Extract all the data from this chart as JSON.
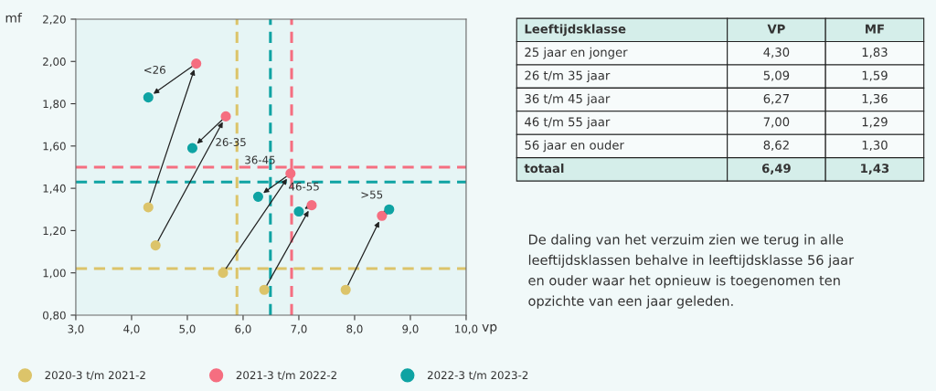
{
  "chart_data": [
    {
      "type": "scatter",
      "xlabel": "vp",
      "ylabel": "mf",
      "marker": "circle",
      "legend": "bottom",
      "xlim": [
        3.0,
        10.0
      ],
      "ylim": [
        0.8,
        2.2
      ],
      "xticks": [
        {
          "value": 3.0,
          "label": "3,0"
        },
        {
          "value": 4.0,
          "label": "4,0"
        },
        {
          "value": 5.0,
          "label": "5,0"
        },
        {
          "value": 6.0,
          "label": "6,0"
        },
        {
          "value": 7.0,
          "label": "7,0"
        },
        {
          "value": 8.0,
          "label": "8,0"
        },
        {
          "value": 9.0,
          "label": "9,0"
        },
        {
          "value": 10.0,
          "label": "10,0"
        }
      ],
      "yticks": [
        {
          "value": 0.8,
          "label": "0,80"
        },
        {
          "value": 1.0,
          "label": "1,00"
        },
        {
          "value": 1.2,
          "label": "1,20"
        },
        {
          "value": 1.4,
          "label": "1,40"
        },
        {
          "value": 1.6,
          "label": "1,60"
        },
        {
          "value": 1.8,
          "label": "1,80"
        },
        {
          "value": 2.0,
          "label": "2,00"
        },
        {
          "value": 2.2,
          "label": "2,20"
        }
      ],
      "series": [
        {
          "name": "2020-3 t/m 2021-2",
          "color": "#dcc46a",
          "x": [
            4.3,
            4.43,
            5.64,
            6.38,
            7.84
          ],
          "values": [
            1.31,
            1.13,
            1.0,
            0.92,
            0.92
          ]
        },
        {
          "name": "2021-3 t/m 2022-2",
          "color": "#f56e80",
          "x": [
            5.16,
            5.69,
            6.85,
            7.23,
            8.49
          ],
          "values": [
            1.99,
            1.74,
            1.47,
            1.32,
            1.27
          ]
        },
        {
          "name": "2022-3 t/m 2023-2",
          "color": "#0fa3a3",
          "x": [
            4.3,
            5.09,
            6.27,
            7.0,
            8.62
          ],
          "values": [
            1.83,
            1.59,
            1.36,
            1.29,
            1.3
          ]
        }
      ],
      "ref_lines": [
        {
          "axis": "x",
          "value": 5.89,
          "color": "#dcc46a",
          "line_style": "dashed"
        },
        {
          "axis": "y",
          "value": 1.02,
          "color": "#dcc46a",
          "line_style": "dashed"
        },
        {
          "axis": "x",
          "value": 6.87,
          "color": "#f56e80",
          "line_style": "dashed"
        },
        {
          "axis": "y",
          "value": 1.5,
          "color": "#f56e80",
          "line_style": "dashed"
        },
        {
          "axis": "x",
          "value": 6.49,
          "color": "#0fa3a3",
          "line_style": "dashed"
        },
        {
          "axis": "y",
          "value": 1.43,
          "color": "#0fa3a3",
          "line_style": "dashed"
        }
      ],
      "annotations": [
        {
          "text": "<26",
          "x": 4.3,
          "y": 1.83
        },
        {
          "text": "26-35",
          "x": 5.69,
          "y": 1.74
        },
        {
          "text": "36-45",
          "x": 6.85,
          "y": 1.47
        },
        {
          "text": "46-55",
          "x": 7.23,
          "y": 1.32
        },
        {
          "text": ">55",
          "x": 8.49,
          "y": 1.27
        }
      ]
    },
    {
      "type": "other",
      "annotations": [
        "Leeftijdsklasse",
        "VP",
        "MF",
        "25 jaar en jonger",
        "4,30",
        "1,83",
        "26 t/m 35 jaar",
        "5,09",
        "1,59",
        "36 t/m 45 jaar",
        "6,27",
        "1,36",
        "46 t/m 55 jaar",
        "7,00",
        "1,29",
        "56 jaar en ouder",
        "8,62",
        "1,30",
        "totaal",
        "6,49",
        "1,43",
        "De daling van het verzuim zien we terug in alle\nleeftijdsklassen behalve in leeftijdsklasse 56 jaar\nen ouder waar het opnieuw is toegenomen ten\nopzichte van een jaar geleden."
      ]
    }
  ]
}
